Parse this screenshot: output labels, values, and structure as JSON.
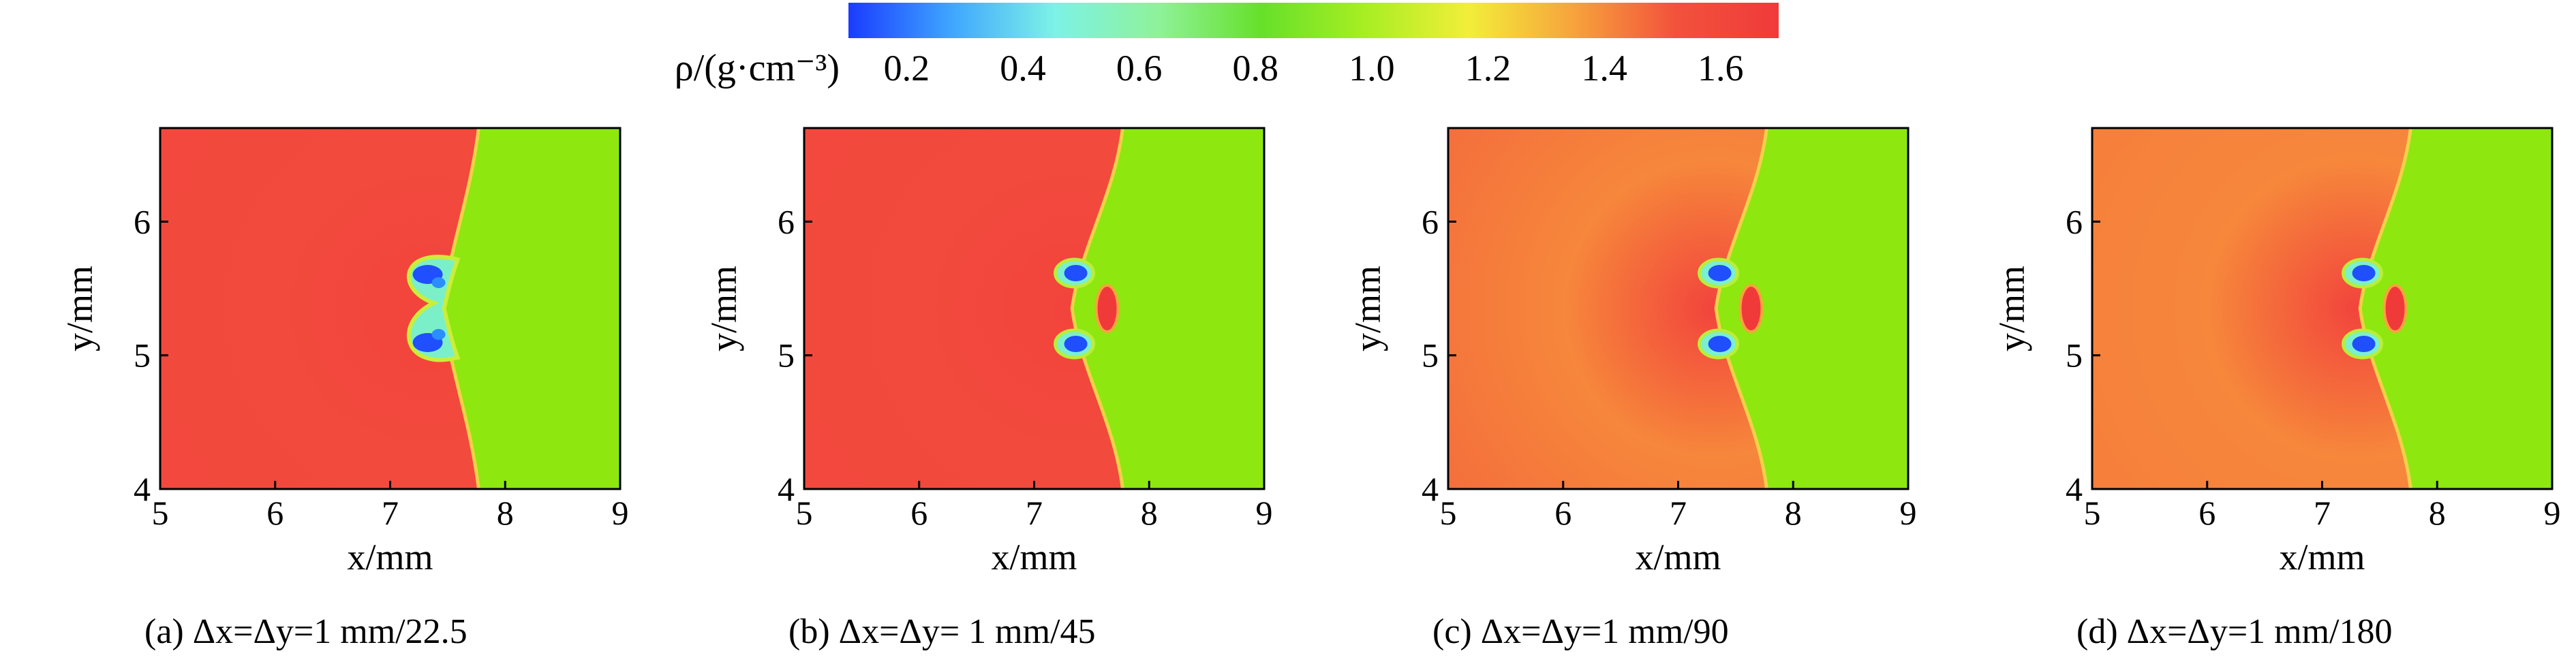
{
  "colorbar": {
    "label": "ρ/(g·cm⁻³)",
    "ticks": [
      "0.2",
      "0.4",
      "0.6",
      "0.8",
      "1.0",
      "1.2",
      "1.4",
      "1.6"
    ],
    "tick_values": [
      0.2,
      0.4,
      0.6,
      0.8,
      1.0,
      1.2,
      1.4,
      1.6
    ],
    "range": [
      0.1,
      1.7
    ],
    "colors": [
      "#1a3cff",
      "#3fa6ff",
      "#7df2e6",
      "#8ef29a",
      "#66e02a",
      "#a8ee22",
      "#f2ee3a",
      "#f7a43c",
      "#f2523c",
      "#f03a3a"
    ]
  },
  "chart_data": [
    {
      "type": "heatmap",
      "caption": "(a) Δx=Δy=1 mm/22.5",
      "xlabel": "x/mm",
      "ylabel": "y/mm",
      "xlim": [
        5,
        9
      ],
      "ylim": [
        4,
        6.7
      ],
      "xticks": [
        "5",
        "6",
        "7",
        "8",
        "9"
      ],
      "yticks": [
        "4",
        "5",
        "6"
      ],
      "shock_front_x": 7.75,
      "left_density": 1.65,
      "right_density": 0.85,
      "bubble_center": [
        7.35,
        5.35
      ]
    },
    {
      "type": "heatmap",
      "caption": "(b) Δx=Δy= 1 mm/45",
      "xlabel": "x/mm",
      "ylabel": "y/mm",
      "xlim": [
        5,
        9
      ],
      "ylim": [
        4,
        6.7
      ],
      "xticks": [
        "5",
        "6",
        "7",
        "8",
        "9"
      ],
      "yticks": [
        "4",
        "5",
        "6"
      ],
      "shock_front_x": 7.75,
      "left_density": 1.6,
      "right_density": 0.85,
      "bubble_center": [
        7.35,
        5.35
      ]
    },
    {
      "type": "heatmap",
      "caption": "(c) Δx=Δy=1 mm/90",
      "xlabel": "x/mm",
      "ylabel": "y/mm",
      "xlim": [
        5,
        9
      ],
      "ylim": [
        4,
        6.7
      ],
      "xticks": [
        "5",
        "6",
        "7",
        "8",
        "9"
      ],
      "yticks": [
        "4",
        "5",
        "6"
      ],
      "shock_front_x": 7.75,
      "left_density": 1.5,
      "right_density": 0.85,
      "bubble_center": [
        7.35,
        5.35
      ]
    },
    {
      "type": "heatmap",
      "caption": "(d) Δx=Δy=1 mm/180",
      "xlabel": "x/mm",
      "ylabel": "y/mm",
      "xlim": [
        5,
        9
      ],
      "ylim": [
        4,
        6.7
      ],
      "xticks": [
        "5",
        "6",
        "7",
        "8",
        "9"
      ],
      "yticks": [
        "4",
        "5",
        "6"
      ],
      "shock_front_x": 7.75,
      "left_density": 1.45,
      "right_density": 0.85,
      "bubble_center": [
        7.35,
        5.35
      ]
    }
  ]
}
